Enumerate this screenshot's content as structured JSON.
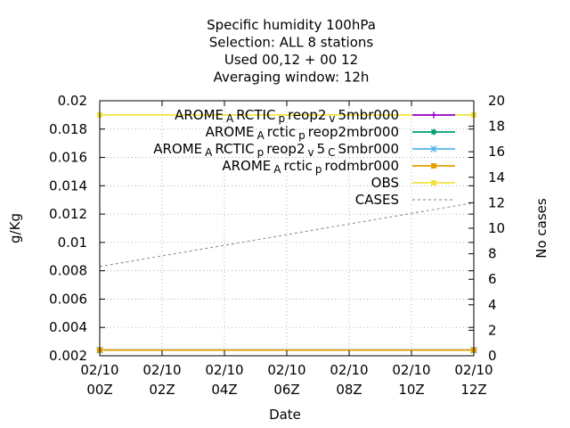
{
  "chart_data": {
    "type": "line",
    "title_lines": [
      "Specific humidity 100hPa",
      "Selection: ALL       8 stations",
      "Used  00,12  + 00 12",
      "Averaging window: 12h"
    ],
    "xlabel": "Date",
    "ylabel": "g/Kg",
    "y2label": "No cases",
    "x_ticks": [
      {
        "line1": "02/10",
        "line2": "00Z"
      },
      {
        "line1": "02/10",
        "line2": "02Z"
      },
      {
        "line1": "02/10",
        "line2": "04Z"
      },
      {
        "line1": "02/10",
        "line2": "06Z"
      },
      {
        "line1": "02/10",
        "line2": "08Z"
      },
      {
        "line1": "02/10",
        "line2": "10Z"
      },
      {
        "line1": "02/10",
        "line2": "12Z"
      }
    ],
    "xlim": [
      0,
      12
    ],
    "ylim": [
      0.002,
      0.02
    ],
    "y_ticks": [
      "0.002",
      "0.004",
      "0.006",
      "0.008",
      "0.01",
      "0.012",
      "0.014",
      "0.016",
      "0.018",
      "0.02"
    ],
    "y2lim": [
      0,
      20
    ],
    "y2_ticks": [
      "0",
      "2",
      "4",
      "6",
      "8",
      "10",
      "12",
      "14",
      "16",
      "18",
      "20"
    ],
    "grid": true,
    "legend_position": "top-right",
    "series": [
      {
        "name": "AROME_ARCTIC_preop2_v_5mbr000",
        "color": "#9400d3",
        "marker": "plus",
        "axis": "y",
        "x": [
          0,
          12
        ],
        "y": [
          0.0024,
          0.0024
        ]
      },
      {
        "name": "AROME_Arctic_preop2mbr000",
        "color": "#009e73",
        "marker": "cross",
        "axis": "y",
        "x": [
          0,
          12
        ],
        "y": [
          0.0024,
          0.0024
        ]
      },
      {
        "name": "AROME_ARCTIC_preop2_v_5_CSmbr000",
        "color": "#56b4e9",
        "marker": "star",
        "axis": "y",
        "x": [
          0,
          12
        ],
        "y": [
          0.0024,
          0.0024
        ]
      },
      {
        "name": "AROME_Arctic_prodmbr000",
        "color": "#e69f00",
        "marker": "square",
        "axis": "y",
        "x": [
          0,
          12
        ],
        "y": [
          0.0024,
          0.0024
        ]
      },
      {
        "name": "OBS",
        "color": "#f0e442",
        "marker": "square",
        "axis": "y",
        "x": [
          0,
          12
        ],
        "y": [
          0.019,
          0.019
        ]
      },
      {
        "name": "CASES",
        "color": "#999999",
        "dashed": true,
        "axis": "y2",
        "x": [
          0,
          12
        ],
        "y": [
          7,
          12
        ]
      }
    ],
    "legend": [
      {
        "parts": [
          [
            "AROME",
            ""
          ],
          [
            "A",
            "sub"
          ],
          [
            "RCTIC",
            ""
          ],
          [
            "p",
            "sub"
          ],
          [
            "reop2",
            ""
          ],
          [
            "v",
            "sub"
          ],
          [
            "5mbr000",
            ""
          ]
        ]
      },
      {
        "parts": [
          [
            "AROME",
            ""
          ],
          [
            "A",
            "sub"
          ],
          [
            "rctic",
            ""
          ],
          [
            "p",
            "sub"
          ],
          [
            "reop2mbr000",
            ""
          ]
        ]
      },
      {
        "parts": [
          [
            "AROME",
            ""
          ],
          [
            "A",
            "sub"
          ],
          [
            "RCTIC",
            ""
          ],
          [
            "p",
            "sub"
          ],
          [
            "reop2",
            ""
          ],
          [
            "v",
            "sub"
          ],
          [
            "5",
            ""
          ],
          [
            "C",
            "sub"
          ],
          [
            "Smbr000",
            ""
          ]
        ]
      },
      {
        "parts": [
          [
            "AROME",
            ""
          ],
          [
            "A",
            "sub"
          ],
          [
            "rctic",
            ""
          ],
          [
            "p",
            "sub"
          ],
          [
            "rodmbr000",
            ""
          ]
        ]
      },
      {
        "parts": [
          [
            "OBS",
            ""
          ]
        ]
      },
      {
        "parts": [
          [
            "CASES",
            ""
          ]
        ]
      }
    ]
  }
}
